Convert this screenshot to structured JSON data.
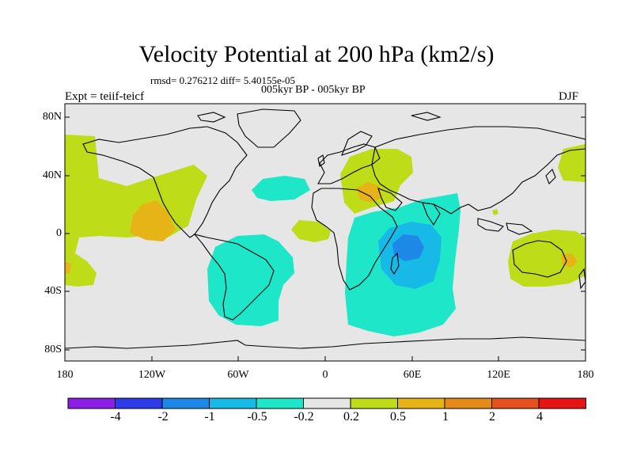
{
  "title": "Velocity Potential at 200 hPa (km2/s)",
  "stats": "rmsd= 0.276212 diff= 5.40155e-05",
  "period": "005kyr BP - 005kyr BP",
  "experiment": "Expt = teiif-teicf",
  "season": "DJF",
  "y_ticks": [
    "80N",
    "40N",
    "0",
    "40S",
    "80S"
  ],
  "x_ticks": [
    "180",
    "120W",
    "60W",
    "0",
    "60E",
    "120E",
    "180"
  ],
  "colorbar": {
    "labels": [
      "-4",
      "-2",
      "-1",
      "-0.5",
      "-0.2",
      "0.2",
      "0.5",
      "1",
      "2",
      "4"
    ],
    "colors": [
      "#8c1ee6",
      "#2d3ce6",
      "#1e88e6",
      "#17b9e6",
      "#1ee6c8",
      "#e6e6e6",
      "#bedc17",
      "#e6b417",
      "#e68a17",
      "#e6501e",
      "#e61414"
    ]
  },
  "palette": {
    "ocean_neutral": "#e6e6e6",
    "positive_light": "#bedc17",
    "positive_mid": "#e6b417",
    "positive_high": "#e68a17",
    "negative_light": "#1ee6c8",
    "negative_mid": "#17b9e6",
    "negative_high": "#1e88e6"
  }
}
